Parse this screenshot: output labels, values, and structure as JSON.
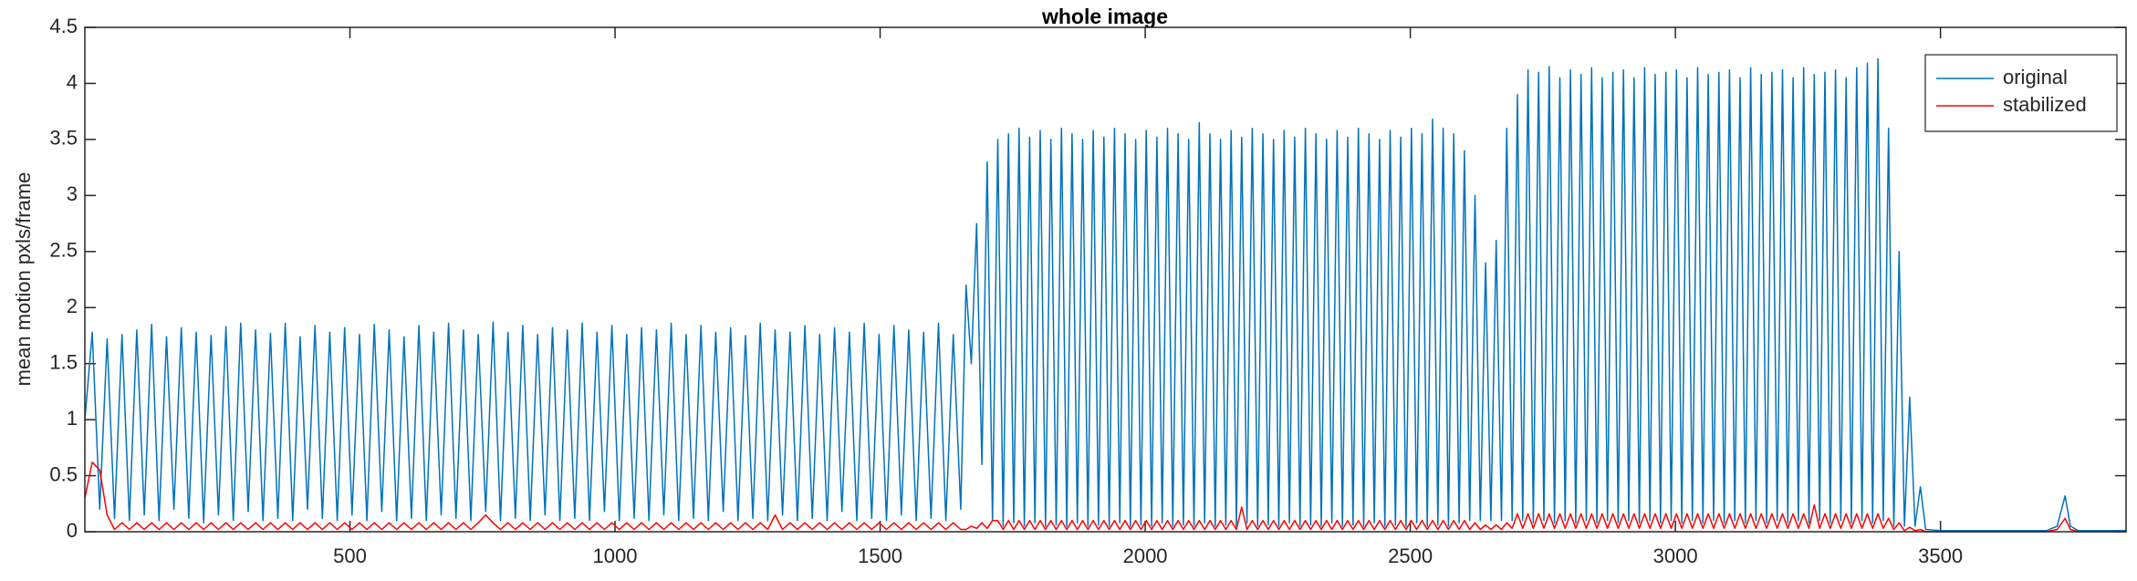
{
  "chart_data": {
    "type": "line",
    "title": "whole image",
    "y_label": "mean motion pxls/frame",
    "xlim": [
      0,
      3850
    ],
    "ylim": [
      0,
      4.5
    ],
    "xticks": [
      500,
      1000,
      1500,
      2000,
      2500,
      3000,
      3500
    ],
    "yticks": [
      0,
      0.5,
      1,
      1.5,
      2,
      2.5,
      3,
      3.5,
      4,
      4.5
    ],
    "grid": false,
    "legend": "northeast",
    "x": [
      0,
      14,
      28,
      42,
      56,
      70,
      84,
      98,
      112,
      126,
      140,
      154,
      168,
      182,
      196,
      210,
      224,
      238,
      252,
      266,
      280,
      294,
      308,
      322,
      336,
      350,
      364,
      378,
      392,
      406,
      420,
      434,
      448,
      462,
      476,
      490,
      504,
      518,
      532,
      546,
      560,
      574,
      588,
      602,
      616,
      630,
      644,
      658,
      672,
      686,
      700,
      714,
      728,
      742,
      756,
      770,
      784,
      798,
      812,
      826,
      840,
      854,
      868,
      882,
      896,
      910,
      924,
      938,
      952,
      966,
      980,
      994,
      1008,
      1022,
      1036,
      1050,
      1064,
      1078,
      1092,
      1106,
      1120,
      1134,
      1148,
      1162,
      1176,
      1190,
      1204,
      1218,
      1232,
      1246,
      1260,
      1274,
      1288,
      1302,
      1316,
      1330,
      1344,
      1358,
      1372,
      1386,
      1400,
      1414,
      1428,
      1442,
      1456,
      1470,
      1484,
      1498,
      1512,
      1526,
      1540,
      1554,
      1568,
      1582,
      1596,
      1610,
      1624,
      1638,
      1652,
      1662,
      1672,
      1682,
      1692,
      1702,
      1712,
      1722,
      1732,
      1742,
      1752,
      1762,
      1772,
      1782,
      1792,
      1802,
      1812,
      1822,
      1832,
      1842,
      1852,
      1862,
      1872,
      1882,
      1892,
      1902,
      1912,
      1922,
      1932,
      1942,
      1952,
      1962,
      1972,
      1982,
      1992,
      2002,
      2012,
      2022,
      2032,
      2042,
      2052,
      2062,
      2072,
      2082,
      2092,
      2102,
      2112,
      2122,
      2132,
      2142,
      2152,
      2162,
      2172,
      2182,
      2192,
      2202,
      2212,
      2222,
      2232,
      2242,
      2252,
      2262,
      2272,
      2282,
      2292,
      2302,
      2312,
      2322,
      2332,
      2342,
      2352,
      2362,
      2372,
      2382,
      2392,
      2402,
      2412,
      2422,
      2432,
      2442,
      2452,
      2462,
      2472,
      2482,
      2492,
      2502,
      2512,
      2522,
      2532,
      2542,
      2552,
      2562,
      2572,
      2582,
      2592,
      2602,
      2612,
      2622,
      2632,
      2642,
      2652,
      2662,
      2672,
      2682,
      2692,
      2702,
      2712,
      2722,
      2732,
      2742,
      2752,
      2762,
      2772,
      2782,
      2792,
      2802,
      2812,
      2822,
      2832,
      2842,
      2852,
      2862,
      2872,
      2882,
      2892,
      2902,
      2912,
      2922,
      2932,
      2942,
      2952,
      2962,
      2972,
      2982,
      2992,
      3002,
      3012,
      3022,
      3032,
      3042,
      3052,
      3062,
      3072,
      3082,
      3092,
      3102,
      3112,
      3122,
      3132,
      3142,
      3152,
      3162,
      3172,
      3182,
      3192,
      3202,
      3212,
      3222,
      3232,
      3242,
      3252,
      3262,
      3272,
      3282,
      3292,
      3302,
      3312,
      3322,
      3332,
      3342,
      3352,
      3362,
      3372,
      3382,
      3392,
      3402,
      3412,
      3422,
      3432,
      3442,
      3452,
      3462,
      3472,
      3500,
      3600,
      3700,
      3720,
      3735,
      3745,
      3760,
      3850
    ],
    "series": [
      {
        "name": "original",
        "color": "#0072bd",
        "values": [
          1.0,
          1.78,
          0.2,
          1.72,
          0.12,
          1.76,
          0.1,
          1.8,
          0.15,
          1.85,
          0.1,
          1.74,
          0.2,
          1.82,
          0.12,
          1.78,
          0.08,
          1.75,
          0.15,
          1.83,
          0.1,
          1.86,
          0.18,
          1.8,
          0.1,
          1.77,
          0.12,
          1.86,
          0.1,
          1.74,
          0.2,
          1.84,
          0.12,
          1.78,
          0.1,
          1.82,
          0.15,
          1.76,
          0.1,
          1.85,
          0.18,
          1.8,
          0.1,
          1.74,
          0.12,
          1.84,
          0.1,
          1.78,
          0.15,
          1.86,
          0.12,
          1.8,
          0.1,
          1.76,
          0.18,
          1.87,
          0.1,
          1.78,
          0.12,
          1.84,
          0.1,
          1.76,
          0.15,
          1.82,
          0.1,
          1.8,
          0.12,
          1.86,
          0.1,
          1.78,
          0.18,
          1.84,
          0.1,
          1.76,
          0.12,
          1.82,
          0.1,
          1.8,
          0.15,
          1.86,
          0.1,
          1.76,
          0.12,
          1.84,
          0.1,
          1.78,
          0.18,
          1.82,
          0.1,
          1.75,
          0.12,
          1.86,
          0.1,
          1.8,
          0.15,
          1.78,
          0.1,
          1.84,
          0.12,
          1.76,
          0.1,
          1.82,
          0.18,
          1.78,
          0.1,
          1.86,
          0.12,
          1.76,
          0.1,
          1.84,
          0.15,
          1.8,
          0.1,
          1.78,
          0.12,
          1.86,
          0.1,
          1.76,
          0.2,
          2.2,
          1.5,
          2.75,
          0.6,
          3.3,
          0.1,
          3.5,
          0.05,
          3.55,
          0.08,
          3.6,
          0.05,
          3.52,
          0.08,
          3.58,
          0.05,
          3.5,
          0.06,
          3.6,
          0.05,
          3.55,
          0.08,
          3.5,
          0.05,
          3.58,
          0.06,
          3.52,
          0.05,
          3.6,
          0.08,
          3.55,
          0.05,
          3.5,
          0.06,
          3.58,
          0.05,
          3.52,
          0.08,
          3.6,
          0.05,
          3.55,
          0.06,
          3.5,
          0.05,
          3.65,
          0.08,
          3.55,
          0.05,
          3.5,
          0.06,
          3.58,
          0.05,
          3.52,
          0.08,
          3.6,
          0.05,
          3.55,
          0.06,
          3.5,
          0.05,
          3.58,
          0.08,
          3.52,
          0.05,
          3.6,
          0.06,
          3.55,
          0.05,
          3.5,
          0.08,
          3.58,
          0.05,
          3.52,
          0.06,
          3.6,
          0.05,
          3.55,
          0.08,
          3.5,
          0.05,
          3.58,
          0.06,
          3.52,
          0.05,
          3.6,
          0.08,
          3.55,
          0.05,
          3.68,
          0.06,
          3.6,
          0.05,
          3.55,
          0.08,
          3.4,
          0.1,
          3.0,
          0.1,
          2.4,
          0.1,
          2.6,
          0.1,
          3.6,
          0.1,
          3.9,
          0.1,
          4.12,
          0.08,
          4.1,
          0.1,
          4.15,
          0.08,
          4.05,
          0.1,
          4.12,
          0.08,
          4.08,
          0.1,
          4.14,
          0.08,
          4.05,
          0.1,
          4.1,
          0.08,
          4.12,
          0.1,
          4.05,
          0.08,
          4.14,
          0.1,
          4.08,
          0.08,
          4.1,
          0.1,
          4.12,
          0.08,
          4.05,
          0.1,
          4.14,
          0.08,
          4.08,
          0.1,
          4.1,
          0.08,
          4.12,
          0.1,
          4.05,
          0.08,
          4.14,
          0.1,
          4.08,
          0.08,
          4.1,
          0.1,
          4.12,
          0.08,
          4.05,
          0.1,
          4.14,
          0.08,
          4.08,
          0.1,
          4.1,
          0.08,
          4.12,
          0.1,
          4.05,
          0.08,
          4.14,
          0.1,
          4.18,
          0.08,
          4.22,
          0.1,
          3.6,
          0.05,
          2.5,
          0.05,
          1.2,
          0.05,
          0.4,
          0.02,
          0.01,
          0.01,
          0.01,
          0.05,
          0.32,
          0.05,
          0.01,
          0.01
        ]
      },
      {
        "name": "stabilized",
        "color": "#ff0000",
        "values": [
          0.3,
          0.62,
          0.55,
          0.15,
          0.02,
          0.08,
          0.02,
          0.08,
          0.02,
          0.08,
          0.02,
          0.08,
          0.02,
          0.08,
          0.02,
          0.08,
          0.02,
          0.08,
          0.02,
          0.08,
          0.02,
          0.08,
          0.02,
          0.08,
          0.02,
          0.08,
          0.02,
          0.08,
          0.02,
          0.08,
          0.02,
          0.08,
          0.02,
          0.08,
          0.02,
          0.08,
          0.02,
          0.08,
          0.02,
          0.08,
          0.02,
          0.08,
          0.02,
          0.08,
          0.02,
          0.08,
          0.02,
          0.08,
          0.02,
          0.08,
          0.02,
          0.08,
          0.02,
          0.08,
          0.15,
          0.08,
          0.02,
          0.08,
          0.02,
          0.08,
          0.02,
          0.08,
          0.02,
          0.08,
          0.02,
          0.08,
          0.02,
          0.08,
          0.02,
          0.08,
          0.02,
          0.08,
          0.02,
          0.08,
          0.02,
          0.08,
          0.02,
          0.08,
          0.02,
          0.08,
          0.02,
          0.08,
          0.02,
          0.08,
          0.02,
          0.08,
          0.02,
          0.08,
          0.02,
          0.08,
          0.02,
          0.08,
          0.02,
          0.15,
          0.02,
          0.08,
          0.02,
          0.08,
          0.02,
          0.08,
          0.02,
          0.08,
          0.02,
          0.08,
          0.02,
          0.08,
          0.02,
          0.08,
          0.02,
          0.08,
          0.02,
          0.08,
          0.02,
          0.08,
          0.02,
          0.08,
          0.02,
          0.08,
          0.02,
          0.02,
          0.05,
          0.03,
          0.08,
          0.03,
          0.1,
          0.1,
          0.02,
          0.1,
          0.02,
          0.1,
          0.02,
          0.1,
          0.02,
          0.1,
          0.02,
          0.1,
          0.02,
          0.1,
          0.02,
          0.1,
          0.02,
          0.1,
          0.02,
          0.1,
          0.02,
          0.1,
          0.02,
          0.1,
          0.02,
          0.1,
          0.02,
          0.1,
          0.02,
          0.1,
          0.02,
          0.1,
          0.02,
          0.1,
          0.02,
          0.1,
          0.02,
          0.1,
          0.02,
          0.1,
          0.02,
          0.1,
          0.02,
          0.1,
          0.02,
          0.1,
          0.02,
          0.22,
          0.02,
          0.1,
          0.02,
          0.1,
          0.02,
          0.1,
          0.02,
          0.1,
          0.02,
          0.1,
          0.02,
          0.1,
          0.02,
          0.1,
          0.02,
          0.1,
          0.02,
          0.1,
          0.02,
          0.1,
          0.02,
          0.1,
          0.02,
          0.1,
          0.02,
          0.1,
          0.02,
          0.1,
          0.02,
          0.1,
          0.02,
          0.1,
          0.02,
          0.1,
          0.02,
          0.1,
          0.02,
          0.1,
          0.02,
          0.1,
          0.02,
          0.1,
          0.02,
          0.08,
          0.02,
          0.06,
          0.02,
          0.06,
          0.02,
          0.08,
          0.03,
          0.16,
          0.03,
          0.16,
          0.03,
          0.16,
          0.03,
          0.16,
          0.03,
          0.16,
          0.03,
          0.16,
          0.03,
          0.16,
          0.03,
          0.16,
          0.03,
          0.16,
          0.03,
          0.16,
          0.03,
          0.16,
          0.03,
          0.16,
          0.03,
          0.16,
          0.03,
          0.16,
          0.03,
          0.16,
          0.03,
          0.16,
          0.03,
          0.16,
          0.03,
          0.16,
          0.03,
          0.16,
          0.03,
          0.16,
          0.03,
          0.16,
          0.03,
          0.16,
          0.03,
          0.16,
          0.03,
          0.16,
          0.03,
          0.16,
          0.03,
          0.16,
          0.03,
          0.16,
          0.03,
          0.16,
          0.03,
          0.24,
          0.03,
          0.16,
          0.03,
          0.16,
          0.03,
          0.16,
          0.03,
          0.16,
          0.03,
          0.16,
          0.03,
          0.16,
          0.03,
          0.12,
          0.02,
          0.08,
          0.01,
          0.04,
          0.01,
          0.02,
          0,
          0,
          0,
          0,
          0.02,
          0.12,
          0.02,
          0,
          0
        ]
      }
    ]
  }
}
